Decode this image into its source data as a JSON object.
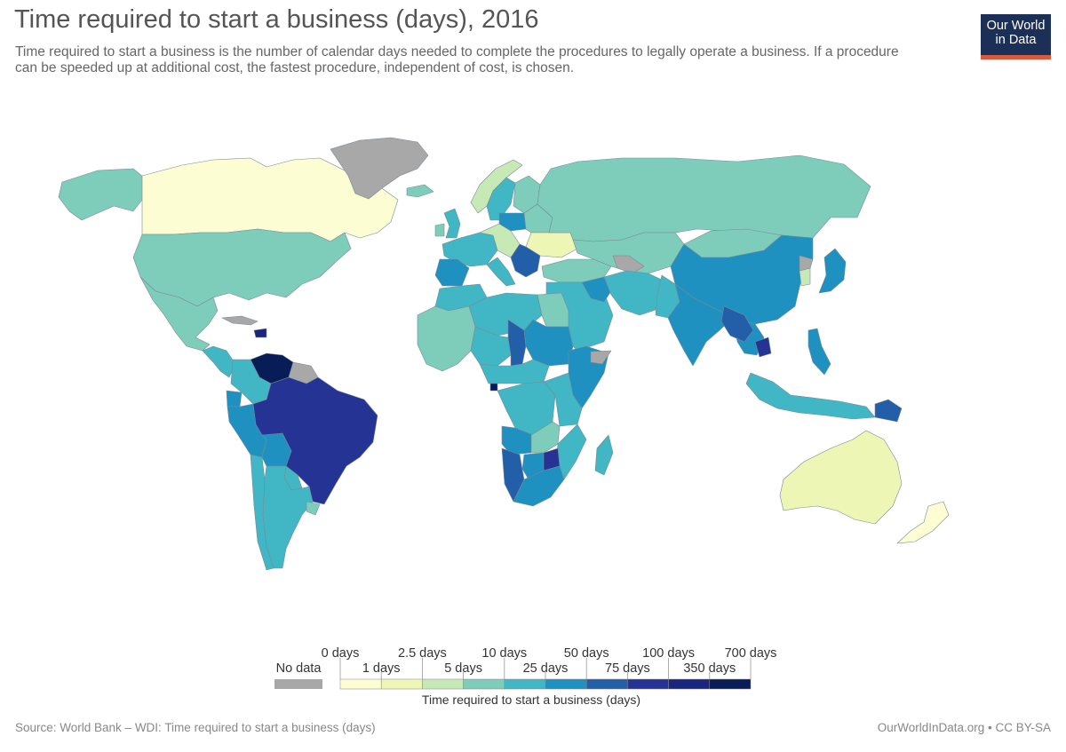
{
  "header": {
    "title": "Time required to start a business (days), 2016",
    "subtitle": "Time required to start a business is the number of calendar days needed to complete the procedures to legally operate a business. If a procedure can be speeded up at additional cost, the fastest procedure, independent of cost, is chosen."
  },
  "logo": {
    "line1": "Our World",
    "line2": "in Data"
  },
  "legend": {
    "no_data_label": "No data",
    "no_data_color": "#a8a8a8",
    "title": "Time required to start a business (days)",
    "top_labels": [
      "0 days",
      "2.5 days",
      "10 days",
      "50 days",
      "100 days",
      "700 days"
    ],
    "bottom_labels": [
      "1 days",
      "5 days",
      "25 days",
      "75 days",
      "350 days"
    ],
    "bins": [
      {
        "range": "0–1",
        "color": "#fcfdd2"
      },
      {
        "range": "1–2.5",
        "color": "#eef6b5"
      },
      {
        "range": "2.5–5",
        "color": "#c7e9b6"
      },
      {
        "range": "5–10",
        "color": "#7ecdbb"
      },
      {
        "range": "10–25",
        "color": "#41b6c4"
      },
      {
        "range": "25–50",
        "color": "#1f91c0"
      },
      {
        "range": "50–75",
        "color": "#225fa8"
      },
      {
        "range": "75–100",
        "color": "#253494"
      },
      {
        "range": "100–350",
        "color": "#1a2580"
      },
      {
        "range": "350–700",
        "color": "#081d58"
      }
    ]
  },
  "footer": {
    "source": "Source: World Bank – WDI: Time required to start a business (days)",
    "credit": "OurWorldInData.org • CC BY-SA"
  },
  "regions": [
    {
      "name": "alaska",
      "color": "#7ecdbb"
    },
    {
      "name": "canada",
      "color": "#fcfdd2"
    },
    {
      "name": "greenland",
      "color": "#a8a8a8"
    },
    {
      "name": "united-states",
      "color": "#7ecdbb"
    },
    {
      "name": "mexico",
      "color": "#7ecdbb"
    },
    {
      "name": "central-america",
      "color": "#41b6c4"
    },
    {
      "name": "cuba",
      "color": "#a8a8a8"
    },
    {
      "name": "haiti",
      "color": "#1a2580"
    },
    {
      "name": "venezuela",
      "color": "#081d58"
    },
    {
      "name": "colombia",
      "color": "#41b6c4"
    },
    {
      "name": "guianas",
      "color": "#a8a8a8"
    },
    {
      "name": "ecuador",
      "color": "#1f91c0"
    },
    {
      "name": "peru",
      "color": "#1f91c0"
    },
    {
      "name": "bolivia",
      "color": "#1f91c0"
    },
    {
      "name": "brazil",
      "color": "#253494"
    },
    {
      "name": "paraguay",
      "color": "#41b6c4"
    },
    {
      "name": "chile",
      "color": "#41b6c4"
    },
    {
      "name": "argentina",
      "color": "#41b6c4"
    },
    {
      "name": "uruguay",
      "color": "#7ecdbb"
    },
    {
      "name": "iceland",
      "color": "#7ecdbb"
    },
    {
      "name": "norway",
      "color": "#c7e9b6"
    },
    {
      "name": "sweden",
      "color": "#41b6c4"
    },
    {
      "name": "finland",
      "color": "#7ecdbb"
    },
    {
      "name": "uk",
      "color": "#41b6c4"
    },
    {
      "name": "ireland",
      "color": "#7ecdbb"
    },
    {
      "name": "western-europe",
      "color": "#41b6c4"
    },
    {
      "name": "central-europe",
      "color": "#c7e9b6"
    },
    {
      "name": "poland",
      "color": "#1f91c0"
    },
    {
      "name": "baltics-belarus",
      "color": "#7ecdbb"
    },
    {
      "name": "ukraine",
      "color": "#eef6b5"
    },
    {
      "name": "balkans",
      "color": "#225fa8"
    },
    {
      "name": "iberia",
      "color": "#1f91c0"
    },
    {
      "name": "italy",
      "color": "#41b6c4"
    },
    {
      "name": "russia",
      "color": "#7ecdbb"
    },
    {
      "name": "kazakhstan-central-asia",
      "color": "#7ecdbb"
    },
    {
      "name": "turkey-caucasus",
      "color": "#7ecdbb"
    },
    {
      "name": "caspian-nodata",
      "color": "#a8a8a8"
    },
    {
      "name": "mongolia",
      "color": "#7ecdbb"
    },
    {
      "name": "china",
      "color": "#1f91c0"
    },
    {
      "name": "korea",
      "color": "#c7e9b6"
    },
    {
      "name": "north-korea",
      "color": "#a8a8a8"
    },
    {
      "name": "japan",
      "color": "#1f91c0"
    },
    {
      "name": "middle-east",
      "color": "#41b6c4"
    },
    {
      "name": "iraq",
      "color": "#1f91c0"
    },
    {
      "name": "iran-afghanistan",
      "color": "#41b6c4"
    },
    {
      "name": "pakistan",
      "color": "#41b6c4"
    },
    {
      "name": "india",
      "color": "#1f91c0"
    },
    {
      "name": "southeast-asia",
      "color": "#1f91c0"
    },
    {
      "name": "myanmar-laos",
      "color": "#225fa8"
    },
    {
      "name": "cambodia",
      "color": "#253494"
    },
    {
      "name": "philippines",
      "color": "#1f91c0"
    },
    {
      "name": "indonesia",
      "color": "#41b6c4"
    },
    {
      "name": "papua-new-guinea",
      "color": "#225fa8"
    },
    {
      "name": "australia",
      "color": "#eef6b5"
    },
    {
      "name": "new-zealand",
      "color": "#fcfdd2"
    },
    {
      "name": "maghreb",
      "color": "#41b6c4"
    },
    {
      "name": "algeria-libya",
      "color": "#41b6c4"
    },
    {
      "name": "egypt",
      "color": "#7ecdbb"
    },
    {
      "name": "west-africa",
      "color": "#7ecdbb"
    },
    {
      "name": "sahel",
      "color": "#41b6c4"
    },
    {
      "name": "chad",
      "color": "#225fa8"
    },
    {
      "name": "sudan",
      "color": "#1f91c0"
    },
    {
      "name": "horn-of-africa",
      "color": "#1f91c0"
    },
    {
      "name": "somaliland-nodata",
      "color": "#a8a8a8"
    },
    {
      "name": "central-africa",
      "color": "#41b6c4"
    },
    {
      "name": "equatorial-guinea",
      "color": "#081d58"
    },
    {
      "name": "congo-drc",
      "color": "#41b6c4"
    },
    {
      "name": "east-africa",
      "color": "#41b6c4"
    },
    {
      "name": "angola",
      "color": "#1f91c0"
    },
    {
      "name": "zambia-malawi",
      "color": "#7ecdbb"
    },
    {
      "name": "mozambique",
      "color": "#41b6c4"
    },
    {
      "name": "namibia",
      "color": "#225fa8"
    },
    {
      "name": "botswana",
      "color": "#1f91c0"
    },
    {
      "name": "zimbabwe",
      "color": "#253494"
    },
    {
      "name": "south-africa",
      "color": "#1f91c0"
    },
    {
      "name": "madagascar",
      "color": "#41b6c4"
    }
  ]
}
